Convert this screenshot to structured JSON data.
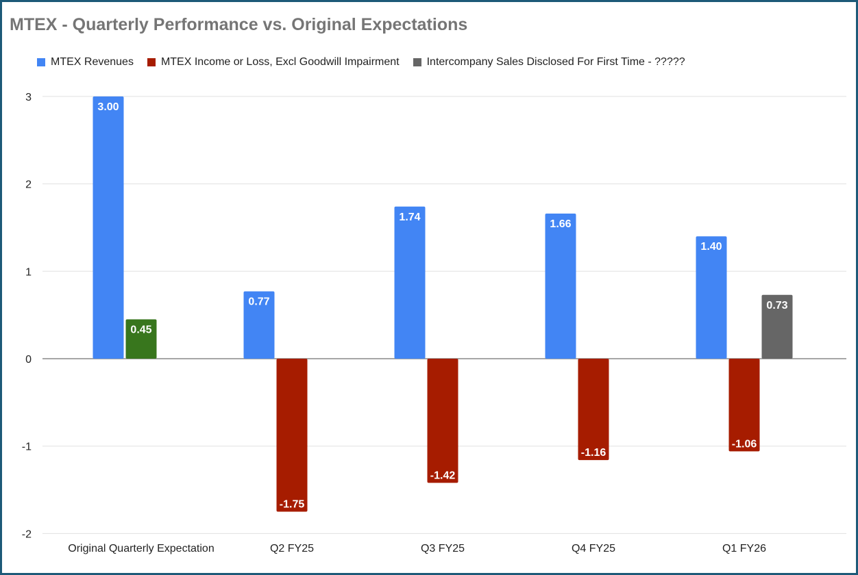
{
  "chart_data": {
    "type": "bar",
    "title": "MTEX - Quarterly Performance vs. Original Expectations",
    "xlabel": "",
    "ylabel": "",
    "ylim": [
      -2,
      3
    ],
    "yticks": [
      3,
      2,
      1,
      0,
      -1,
      -2
    ],
    "grid": true,
    "legend_position": "top",
    "categories": [
      "Original Quarterly Expectation",
      "Q2 FY25",
      "Q3 FY25",
      "Q4 FY25",
      "Q1 FY26"
    ],
    "series": [
      {
        "name": "MTEX Revenues",
        "color": "#4285f4",
        "values": [
          3.0,
          0.77,
          1.74,
          1.66,
          1.4
        ],
        "labels": [
          "3.00",
          "0.77",
          "1.74",
          "1.66",
          "1.40"
        ]
      },
      {
        "name": "MTEX Income or Loss, Excl Goodwill Impairment",
        "color": "#a61c00",
        "point_colors": [
          "#38761d",
          null,
          null,
          null,
          null
        ],
        "values": [
          0.45,
          -1.75,
          -1.42,
          -1.16,
          -1.06
        ],
        "labels": [
          "0.45",
          "-1.75",
          "-1.42",
          "-1.16",
          "-1.06"
        ]
      },
      {
        "name": "Intercompany Sales Disclosed For First Time - ?????",
        "color": "#666666",
        "values": [
          null,
          null,
          null,
          null,
          0.73
        ],
        "labels": [
          null,
          null,
          null,
          null,
          "0.73"
        ]
      }
    ]
  }
}
